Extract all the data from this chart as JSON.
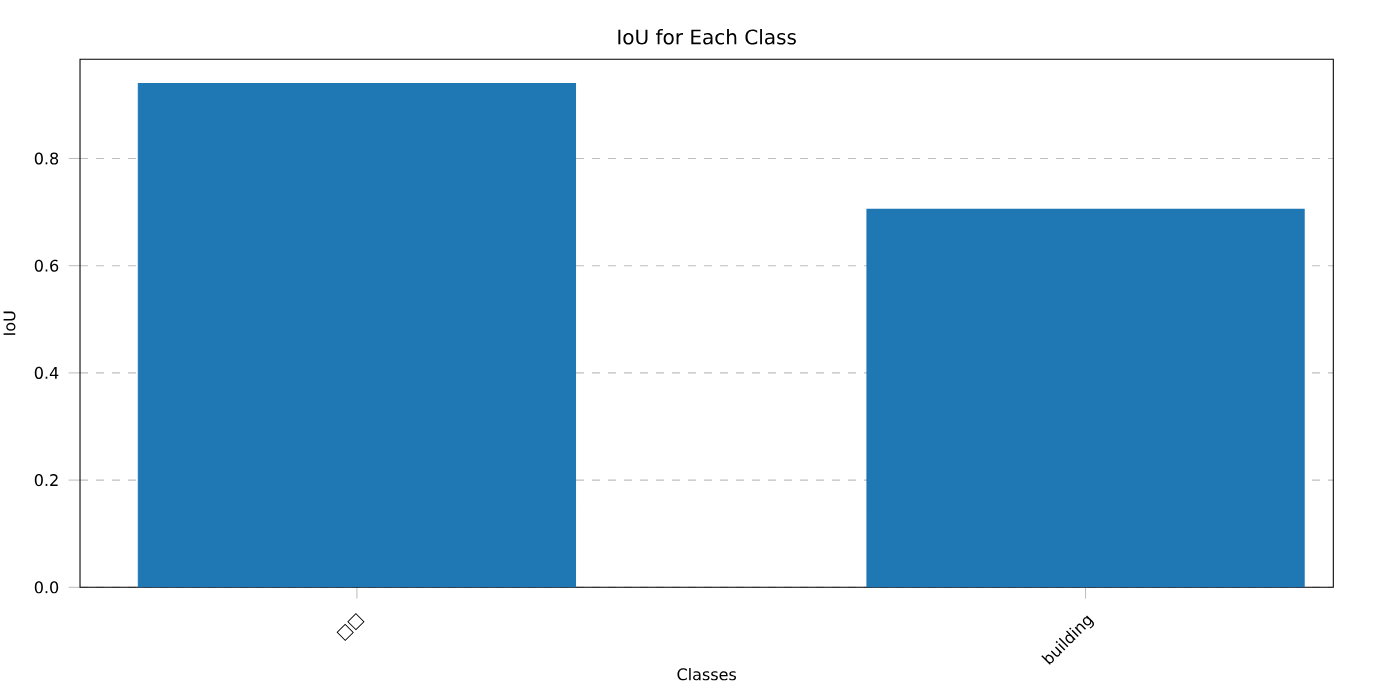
{
  "chart_data": {
    "type": "bar",
    "title": "IoU for Each Class",
    "xlabel": "Classes",
    "ylabel": "IoU",
    "categories": [
      "□□",
      "building"
    ],
    "values": [
      0.94,
      0.705
    ],
    "color": "#1f77b4",
    "ylim": [
      0,
      0.985
    ],
    "yticks": [
      {
        "value": 0,
        "label": "0.0"
      },
      0.2,
      0.4,
      0.6,
      0.8
    ],
    "grid": "y"
  }
}
